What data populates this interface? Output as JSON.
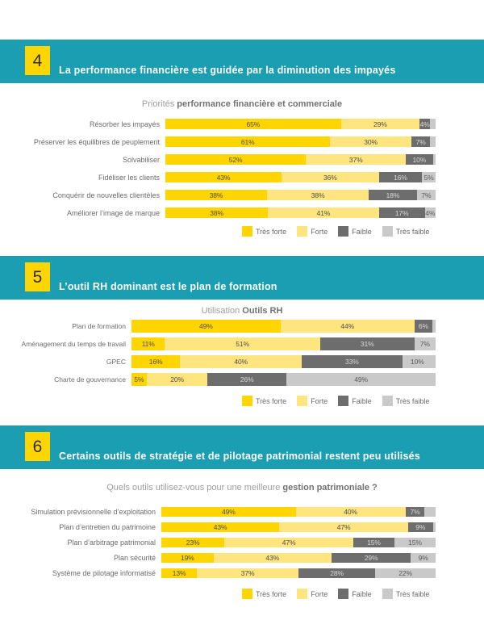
{
  "sections": [
    {
      "number": "4",
      "title": "La performance financière est guidée par la diminution des impayés",
      "subtitle_light": "Priorités",
      "subtitle_bold": "performance financière et commerciale"
    },
    {
      "number": "5",
      "title": "L’outil RH dominant est le plan de formation",
      "subtitle_light": "Utilisation",
      "subtitle_bold": "Outils RH"
    },
    {
      "number": "6",
      "title": "Certains outils de stratégie et de pilotage patrimonial restent peu utilisés",
      "subtitle_light": "Quels outils utilisez-vous pour une meilleure",
      "subtitle_bold": "gestion patrimoniale ?"
    }
  ],
  "legend": {
    "items": [
      {
        "label": "Très forte",
        "color": "#FFD500",
        "text_color": "#4D4D4D"
      },
      {
        "label": "Forte",
        "color": "#FFE57F",
        "text_color": "#4D4D4D"
      },
      {
        "label": "Faible",
        "color": "#6D6D6D",
        "text_color": "#D8D8D8"
      },
      {
        "label": "Très faible",
        "color": "#C9C9C9",
        "text_color": "#595959"
      }
    ]
  },
  "colors": {
    "band_background": "#1B9EB1",
    "badge_background": "#FFD500",
    "badge_text": "#2E2E38"
  },
  "chart_data": [
    {
      "type": "bar",
      "stacked": true,
      "orientation": "horizontal",
      "title": "Priorités performance financière et commerciale",
      "xlim": [
        0,
        100
      ],
      "unit": "%",
      "legend_position": "bottom",
      "categories": [
        "Résorber les impayés",
        "Préserver les équilibres de peuplement",
        "Solvabiliser",
        "Fidéliser les clients",
        "Conquérir de nouvelles clientèles",
        "Améliorer l’image de marque"
      ],
      "series": [
        {
          "name": "Très forte",
          "values": [
            65,
            61,
            52,
            43,
            38,
            38
          ]
        },
        {
          "name": "Forte",
          "values": [
            29,
            30,
            37,
            36,
            38,
            41
          ]
        },
        {
          "name": "Faible",
          "values": [
            4,
            7,
            10,
            16,
            18,
            17
          ]
        },
        {
          "name": "Très faible",
          "values": [
            null,
            null,
            null,
            5,
            7,
            4
          ]
        }
      ]
    },
    {
      "type": "bar",
      "stacked": true,
      "orientation": "horizontal",
      "title": "Utilisation Outils RH",
      "xlim": [
        0,
        100
      ],
      "unit": "%",
      "legend_position": "bottom",
      "categories": [
        "Plan de formation",
        "Aménagement du temps de travail",
        "GPEC",
        "Charte de gouvernance"
      ],
      "series": [
        {
          "name": "Très forte",
          "values": [
            49,
            11,
            16,
            5
          ]
        },
        {
          "name": "Forte",
          "values": [
            44,
            51,
            40,
            20
          ]
        },
        {
          "name": "Faible",
          "values": [
            6,
            31,
            33,
            26
          ]
        },
        {
          "name": "Très faible",
          "values": [
            null,
            7,
            10,
            49
          ]
        }
      ]
    },
    {
      "type": "bar",
      "stacked": true,
      "orientation": "horizontal",
      "title": "Quels outils utilisez-vous pour une meilleure gestion patrimoniale ?",
      "xlim": [
        0,
        100
      ],
      "unit": "%",
      "legend_position": "bottom",
      "categories": [
        "Simulation prévisionnelle d’exploitation",
        "Plan d’entretien du patrimoine",
        "Plan d’arbitrage patrimonial",
        "Plan sécurité",
        "Système de pilotage informatisé"
      ],
      "series": [
        {
          "name": "Très forte",
          "values": [
            49,
            43,
            23,
            19,
            13
          ]
        },
        {
          "name": "Forte",
          "values": [
            40,
            47,
            47,
            43,
            37
          ]
        },
        {
          "name": "Faible",
          "values": [
            7,
            9,
            15,
            29,
            28
          ]
        },
        {
          "name": "Très faible",
          "values": [
            null,
            null,
            15,
            9,
            22
          ]
        }
      ]
    }
  ]
}
